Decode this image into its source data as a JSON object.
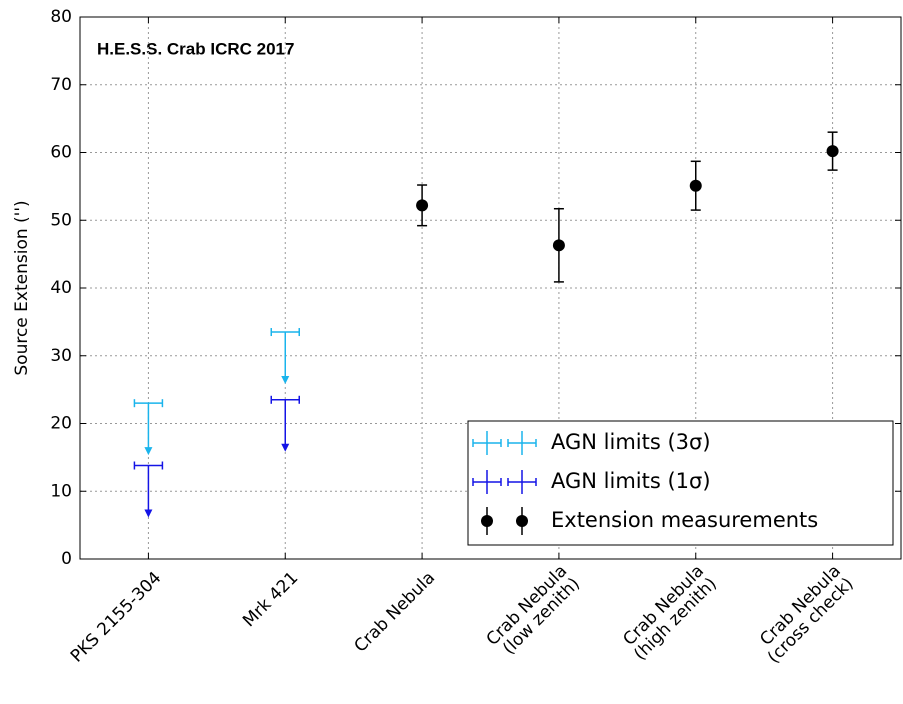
{
  "chart_data": {
    "type": "errorbar",
    "annotation": "H.E.S.S. Crab ICRC 2017",
    "y_label": "Source Extension ('')",
    "categories": [
      [
        "PKS 2155-304"
      ],
      [
        "Mrk 421"
      ],
      [
        "Crab Nebula"
      ],
      [
        "Crab Nebula",
        "(low zenith)"
      ],
      [
        "Crab Nebula",
        "(high zenith)"
      ],
      [
        "Crab Nebula",
        "(cross check)"
      ]
    ],
    "series": [
      {
        "name": "AGN limits (3σ)",
        "color": "#1ab4ec",
        "upper_limit": true,
        "values": [
          23,
          33.5,
          null,
          null,
          null,
          null
        ]
      },
      {
        "name": "AGN limits (1σ)",
        "color": "#1414e6",
        "upper_limit": true,
        "values": [
          13.8,
          23.5,
          null,
          null,
          null,
          null
        ]
      },
      {
        "name": "Extension measurements",
        "color": "#000000",
        "upper_limit": false,
        "values": [
          null,
          null,
          52.2,
          46.3,
          55.1,
          60.2
        ],
        "errors": [
          null,
          null,
          3,
          5.4,
          3.6,
          2.8
        ]
      }
    ],
    "ylim": [
      0,
      80
    ],
    "yticks": [
      0,
      10,
      20,
      30,
      40,
      50,
      60,
      70,
      80
    ],
    "grid": true,
    "legend": "lower right"
  }
}
